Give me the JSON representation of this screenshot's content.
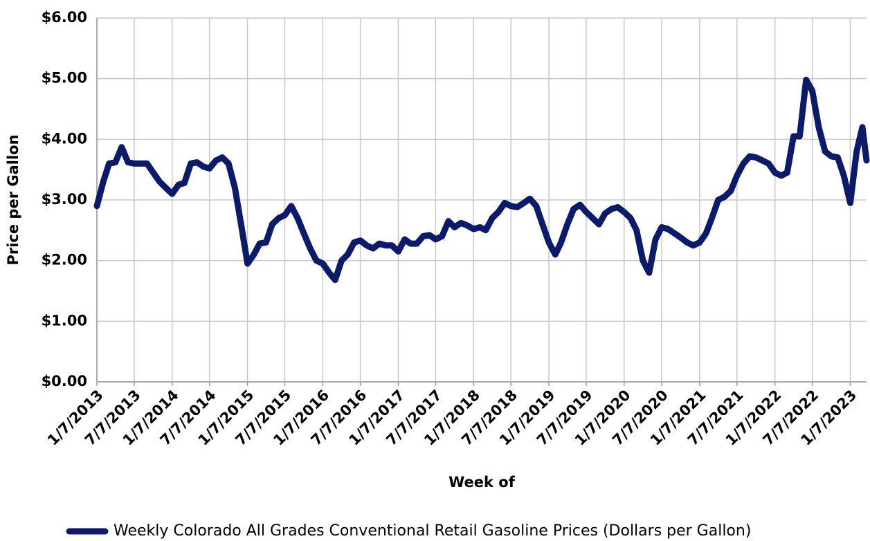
{
  "chart_data": {
    "type": "line",
    "x_label": "Week of",
    "y_label": "Price per Gallon",
    "x": [
      "1/7/2013",
      "2/7/2013",
      "3/7/2013",
      "4/7/2013",
      "5/7/2013",
      "6/7/2013",
      "7/7/2013",
      "8/7/2013",
      "9/7/2013",
      "10/7/2013",
      "11/7/2013",
      "12/7/2013",
      "1/7/2014",
      "2/7/2014",
      "3/7/2014",
      "4/7/2014",
      "5/7/2014",
      "6/7/2014",
      "7/7/2014",
      "8/7/2014",
      "9/7/2014",
      "10/7/2014",
      "11/7/2014",
      "12/7/2014",
      "1/7/2015",
      "2/7/2015",
      "3/7/2015",
      "4/7/2015",
      "5/7/2015",
      "6/7/2015",
      "7/7/2015",
      "8/7/2015",
      "9/7/2015",
      "10/7/2015",
      "11/7/2015",
      "12/7/2015",
      "1/7/2016",
      "2/7/2016",
      "3/7/2016",
      "4/7/2016",
      "5/7/2016",
      "6/7/2016",
      "7/7/2016",
      "8/7/2016",
      "9/7/2016",
      "10/7/2016",
      "11/7/2016",
      "12/7/2016",
      "1/7/2017",
      "2/7/2017",
      "3/7/2017",
      "4/7/2017",
      "5/7/2017",
      "6/7/2017",
      "7/7/2017",
      "8/7/2017",
      "9/7/2017",
      "10/7/2017",
      "11/7/2017",
      "12/7/2017",
      "1/7/2018",
      "2/7/2018",
      "3/7/2018",
      "4/7/2018",
      "5/7/2018",
      "6/7/2018",
      "7/7/2018",
      "8/7/2018",
      "9/7/2018",
      "10/7/2018",
      "11/7/2018",
      "12/7/2018",
      "1/7/2019",
      "2/7/2019",
      "3/7/2019",
      "4/7/2019",
      "5/7/2019",
      "6/7/2019",
      "7/7/2019",
      "8/7/2019",
      "9/7/2019",
      "10/7/2019",
      "11/7/2019",
      "12/7/2019",
      "1/7/2020",
      "2/7/2020",
      "3/7/2020",
      "4/7/2020",
      "5/7/2020",
      "6/7/2020",
      "7/7/2020",
      "8/7/2020",
      "9/7/2020",
      "10/7/2020",
      "11/7/2020",
      "12/7/2020",
      "1/7/2021",
      "2/7/2021",
      "3/7/2021",
      "4/7/2021",
      "5/7/2021",
      "6/7/2021",
      "7/7/2021",
      "8/7/2021",
      "9/7/2021",
      "10/7/2021",
      "11/7/2021",
      "12/7/2021",
      "1/7/2022",
      "2/7/2022",
      "3/7/2022",
      "4/7/2022",
      "5/7/2022",
      "6/7/2022",
      "7/7/2022",
      "8/7/2022",
      "9/7/2022",
      "10/7/2022",
      "11/7/2022",
      "12/7/2022",
      "1/7/2023",
      "2/7/2023",
      "3/7/2023",
      "3/27/2023"
    ],
    "series": [
      {
        "name": "Weekly Colorado All Grades Conventional Retail Gasoline Prices  (Dollars per Gallon)",
        "color": "#0c1a6b",
        "values": [
          2.9,
          3.3,
          3.6,
          3.62,
          3.87,
          3.62,
          3.6,
          3.6,
          3.6,
          3.45,
          3.3,
          3.2,
          3.1,
          3.25,
          3.28,
          3.6,
          3.62,
          3.55,
          3.52,
          3.65,
          3.7,
          3.6,
          3.2,
          2.6,
          1.95,
          2.1,
          2.28,
          2.3,
          2.6,
          2.7,
          2.75,
          2.9,
          2.7,
          2.45,
          2.2,
          2.0,
          1.95,
          1.8,
          1.68,
          2.0,
          2.1,
          2.3,
          2.33,
          2.25,
          2.2,
          2.28,
          2.25,
          2.25,
          2.15,
          2.35,
          2.28,
          2.28,
          2.4,
          2.42,
          2.35,
          2.4,
          2.65,
          2.55,
          2.62,
          2.58,
          2.52,
          2.55,
          2.5,
          2.7,
          2.8,
          2.95,
          2.9,
          2.88,
          2.95,
          3.02,
          2.9,
          2.6,
          2.3,
          2.1,
          2.3,
          2.6,
          2.85,
          2.92,
          2.8,
          2.7,
          2.6,
          2.78,
          2.85,
          2.88,
          2.8,
          2.7,
          2.5,
          2.0,
          1.8,
          2.35,
          2.55,
          2.52,
          2.45,
          2.38,
          2.3,
          2.25,
          2.3,
          2.45,
          2.7,
          3.0,
          3.05,
          3.15,
          3.4,
          3.6,
          3.72,
          3.7,
          3.65,
          3.6,
          3.45,
          3.4,
          3.45,
          4.05,
          4.05,
          4.98,
          4.8,
          4.2,
          3.8,
          3.72,
          3.7,
          3.4,
          2.95,
          3.8,
          4.2,
          3.65
        ]
      }
    ],
    "xlim": [
      "1/7/2013",
      "3/27/2023"
    ],
    "xticks": [
      "1/7/2013",
      "7/7/2013",
      "1/7/2014",
      "7/7/2014",
      "1/7/2015",
      "7/7/2015",
      "1/7/2016",
      "7/7/2016",
      "1/7/2017",
      "7/7/2017",
      "1/7/2018",
      "7/7/2018",
      "1/7/2019",
      "7/7/2019",
      "1/7/2020",
      "7/7/2020",
      "1/7/2021",
      "7/7/2021",
      "1/7/2022",
      "7/7/2022",
      "1/7/2023"
    ],
    "ylim": [
      0,
      6
    ],
    "yticks": [
      {
        "value": 0,
        "label": "$0.00"
      },
      {
        "value": 1,
        "label": "$1.00"
      },
      {
        "value": 2,
        "label": "$2.00"
      },
      {
        "value": 3,
        "label": "$3.00"
      },
      {
        "value": 4,
        "label": "$4.00"
      },
      {
        "value": 5,
        "label": "$5.00"
      },
      {
        "value": 6,
        "label": "$6.00"
      }
    ],
    "grid": true,
    "legend": "bottom"
  }
}
